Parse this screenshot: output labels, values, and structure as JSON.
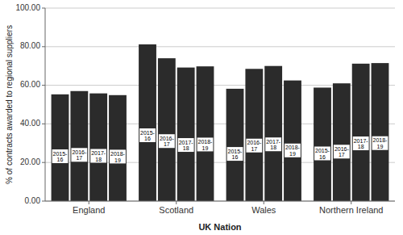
{
  "chart_data": {
    "type": "bar",
    "categories": [
      "England",
      "Scotland",
      "Wales",
      "Northern Ireland"
    ],
    "series": [
      {
        "name": "2015-\n16",
        "color": "#2b2b2b",
        "values": [
          55.3,
          81.2,
          58.2,
          58.8
        ]
      },
      {
        "name": "2016-\n17",
        "color": "#2b2b2b",
        "values": [
          57.0,
          74.0,
          68.5,
          61.0
        ]
      },
      {
        "name": "2017-\n18",
        "color": "#2b2b2b",
        "values": [
          55.8,
          69.2,
          70.0,
          71.2
        ]
      },
      {
        "name": "2018-\n19",
        "color": "#2b2b2b",
        "values": [
          54.9,
          69.8,
          62.5,
          71.5
        ]
      }
    ],
    "xlabel": "UK Nation",
    "ylabel": "% of contracts awarded to regional suppliers",
    "ylim": [
      0,
      100
    ],
    "yticks": [
      {
        "value": 0,
        "label": "0.00"
      },
      {
        "value": 20,
        "label": "20.00"
      },
      {
        "value": 40,
        "label": "40.00"
      },
      {
        "value": 60,
        "label": "60.00"
      },
      {
        "value": 80,
        "label": "80.00"
      },
      {
        "value": 100,
        "label": "100.00"
      }
    ],
    "grid": true
  }
}
